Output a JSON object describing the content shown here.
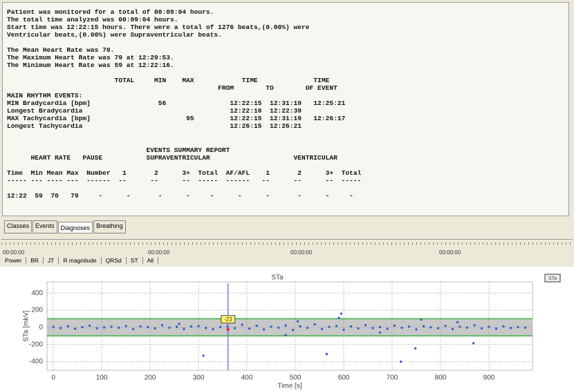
{
  "report": {
    "blocks": [
      [
        "Patient was monitored for a total of 00:09:04 hours.",
        "The total time analyzed was 00:09:04 hours.",
        "Start time was 12:22:15 hours. There were a total of 1276 beats,(0.00%) were",
        "Ventricular beats,(0.00%) were Supraventricular beats."
      ],
      [
        "The Mean Heart Rate was 70.",
        "The Maximum Heart Rate was 79 at 12:29:53.",
        "The Minimum Heart Rate was 59 at 12:22:16."
      ],
      [
        "                           TOTAL     MIN    MAX            TIME              TIME",
        "                                                     FROM        TO        OF EVENT",
        "MAIN RHYTHM EVENTS:",
        "MIN Bradycardia [bpm]                 56                12:22:15  12:31:19   12:25:21",
        "Longest Bradycardia                                     12:22:16  12:22:39",
        "MAX Tachycardia [bpm]                        95         12:22:15  12:31:19   12:26:17",
        "Longest Tachycardia                                     12:26:15  12:26:21"
      ],
      [
        "                                   EVENTS SUMMARY REPORT",
        "      HEART RATE   PAUSE           SUPRAVENTRICULAR                     VENTRICULAR"
      ],
      [
        "Time  Min Mean Max  Number   1       2      3+  Total  AF/AFL    1       2      3+  Total",
        "----- --- ---- ---  ------  --      --      --  -----  ------   --      --      --  -----"
      ],
      [
        "12:22  59  70   79     -      -       -      -     -      -      -       -      -     -"
      ]
    ]
  },
  "tabs": [
    "Classes",
    "Events",
    "Diagnoses",
    "Breathing"
  ],
  "timeline": [
    "00:00:00",
    "00:00:00",
    "00:00:00",
    "00:00:00"
  ],
  "toolbar": [
    "Power",
    "BR",
    "JT",
    "R magnitude",
    "QRSd",
    "ST",
    "All"
  ],
  "chart_data": {
    "type": "scatter",
    "title": "STa",
    "x_label": "Time [s]",
    "y_label": "STa [mkV]",
    "xlim": [
      -13,
      990
    ],
    "ylim": [
      -500,
      530
    ],
    "xticks": [
      0,
      100,
      200,
      300,
      400,
      500,
      600,
      700,
      800,
      900
    ],
    "yticks": [
      -400,
      -200,
      0,
      200,
      400
    ],
    "grid": true,
    "band": [
      -100,
      100
    ],
    "band_color": "#c8c8c8",
    "band_line_color": "#3cb043",
    "cursor": {
      "x": 361,
      "value": -23
    },
    "series": [
      {
        "name": "STa",
        "color": "#2f5fd0",
        "x": [
          0,
          15,
          30,
          45,
          60,
          75,
          90,
          105,
          120,
          135,
          150,
          165,
          180,
          195,
          210,
          225,
          240,
          255,
          270,
          285,
          300,
          315,
          330,
          345,
          360,
          375,
          390,
          405,
          420,
          435,
          450,
          465,
          480,
          495,
          510,
          525,
          540,
          555,
          570,
          585,
          600,
          615,
          630,
          645,
          660,
          675,
          690,
          705,
          720,
          735,
          750,
          765,
          780,
          795,
          810,
          825,
          840,
          855,
          870,
          885,
          900,
          915,
          930,
          945,
          960,
          975,
          310,
          565,
          595,
          590,
          718,
          748,
          868,
          760,
          505,
          480,
          260,
          675,
          835
        ],
        "values": [
          5,
          -8,
          12,
          -15,
          3,
          20,
          -10,
          0,
          8,
          -5,
          15,
          -20,
          10,
          2,
          -12,
          25,
          -3,
          6,
          -18,
          9,
          14,
          -7,
          -22,
          4,
          11,
          -9,
          30,
          -14,
          18,
          -25,
          7,
          -4,
          22,
          -30,
          12,
          -6,
          35,
          -20,
          5,
          15,
          -28,
          10,
          -12,
          26,
          -8,
          3,
          -16,
          20,
          -5,
          9,
          -24,
          13,
          1,
          -10,
          17,
          -19,
          8,
          -3,
          24,
          -11,
          6,
          -15,
          11,
          -7,
          2,
          -4,
          -330,
          -310,
          160,
          110,
          -400,
          -245,
          -185,
          90,
          70,
          -90,
          40,
          -60,
          60
        ]
      }
    ]
  }
}
